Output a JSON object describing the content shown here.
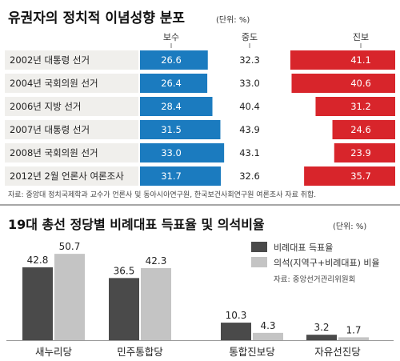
{
  "colors": {
    "conservative": "#1b7bbf",
    "moderate": "#ffffff",
    "progressive": "#d8252b",
    "row_band": "#f0efec",
    "bar_proportional": "#4a4a4a",
    "bar_seat": "#c4c4c4",
    "rule": "#9a9a9a"
  },
  "chart_data": [
    {
      "type": "bar",
      "orientation": "horizontal",
      "stacked": true,
      "title": "유권자의 정치적 이념성향 분포",
      "unit_note": "(단위: %)",
      "categories": [
        "2002년 대통령 선거",
        "2004년 국회의원 선거",
        "2006년 지방 선거",
        "2007년 대통령 선거",
        "2008년 국회의원 선거",
        "2012년 2월 언론사 여론조사"
      ],
      "series": [
        {
          "name": "보수",
          "values": [
            26.6,
            26.4,
            28.4,
            31.5,
            33.0,
            31.7
          ]
        },
        {
          "name": "중도",
          "values": [
            32.3,
            33.0,
            40.4,
            43.9,
            43.1,
            32.6
          ]
        },
        {
          "name": "진보",
          "values": [
            41.1,
            40.6,
            31.2,
            24.6,
            23.9,
            35.7
          ]
        }
      ],
      "value_labels": [
        [
          "26.6",
          "32.3",
          "41.1"
        ],
        [
          "26.4",
          "33.0",
          "40.6"
        ],
        [
          "28.4",
          "40.4",
          "31.2"
        ],
        [
          "31.5",
          "43.9",
          "24.6"
        ],
        [
          "33.0",
          "43.1",
          "23.9"
        ],
        [
          "31.7",
          "32.6",
          "35.7"
        ]
      ],
      "source": "자료: 중앙대 정치국제학과 교수가 언론사 및 동아시아연구원, 한국보건사회연구원 여론조사 자료 취합."
    },
    {
      "type": "bar",
      "title": "19대 총선 정당별 비례대표 득표율 및 의석비율",
      "unit_note": "(단위: %)",
      "categories": [
        "새누리당",
        "민주통합당",
        "통합진보당",
        "자유선진당"
      ],
      "series": [
        {
          "name": "비례대표 득표율",
          "values": [
            42.8,
            36.5,
            10.3,
            3.2
          ]
        },
        {
          "name": "의석(지역구+비례대표) 비율",
          "values": [
            50.7,
            42.3,
            4.3,
            1.7
          ]
        }
      ],
      "value_labels": [
        [
          "42.8",
          "50.7"
        ],
        [
          "36.5",
          "42.3"
        ],
        [
          "10.3",
          "4.3"
        ],
        [
          "3.2",
          "1.7"
        ]
      ],
      "ylim": [
        0,
        55
      ],
      "source": "자료: 중앙선거관리위원회"
    }
  ]
}
